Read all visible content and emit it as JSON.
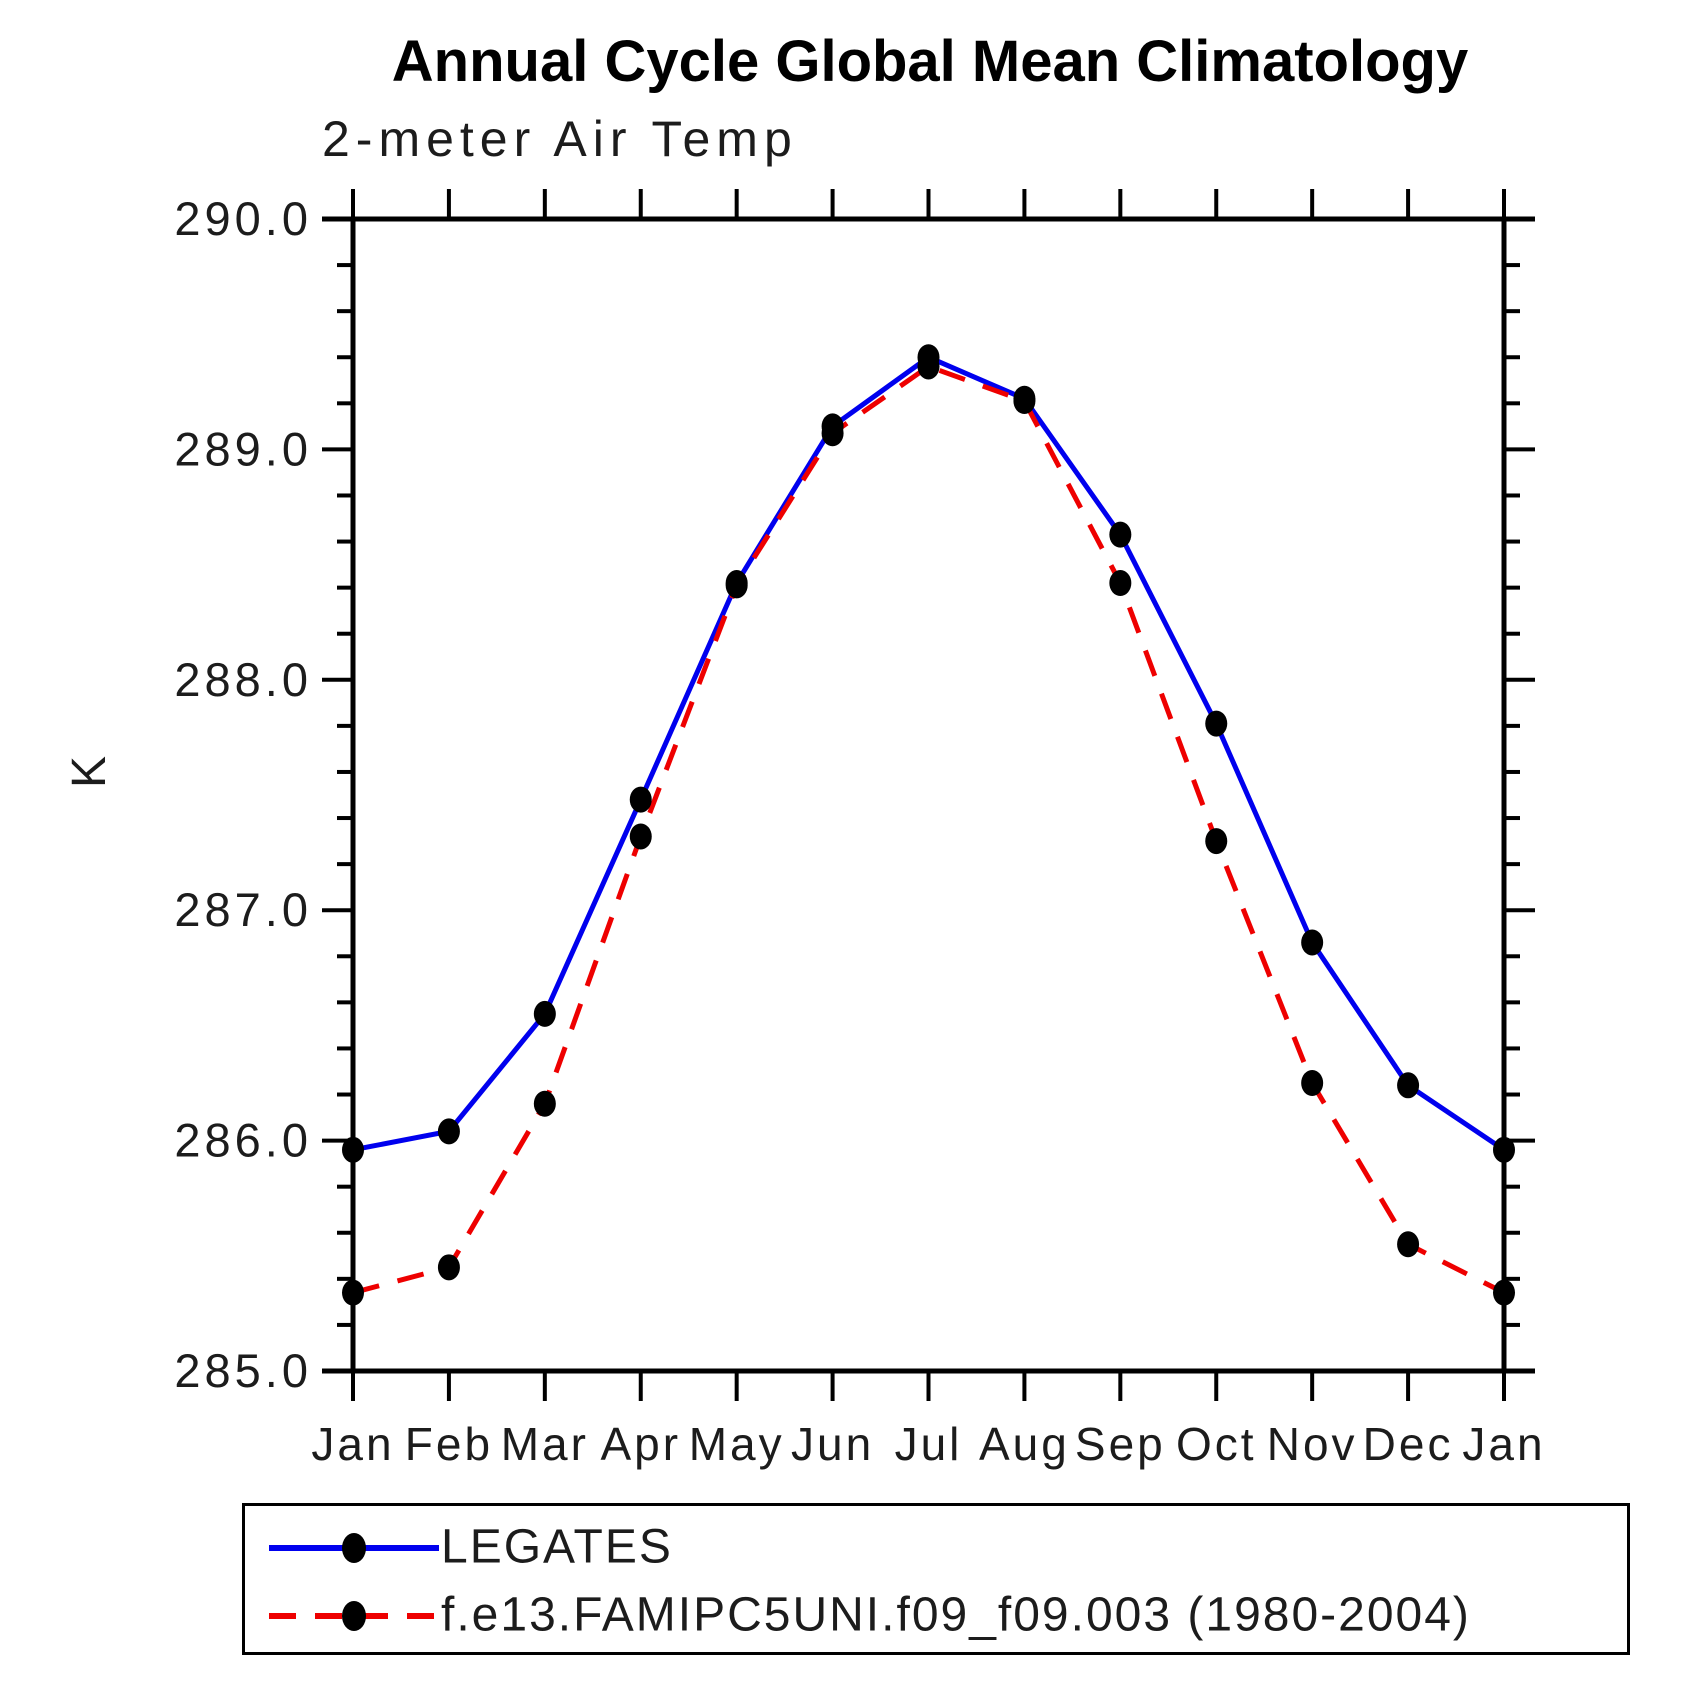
{
  "title": "Annual Cycle Global Mean Climatology",
  "subtitle": "2-meter Air Temp",
  "y_axis": {
    "label": "K",
    "tick_labels": [
      "290.0",
      "289.0",
      "288.0",
      "287.0",
      "286.0",
      "285.0"
    ],
    "minor_step": 0.2
  },
  "x_axis": {
    "tick_labels": [
      "Jan",
      "Feb",
      "Mar",
      "Apr",
      "May",
      "Jun",
      "Jul",
      "Aug",
      "Sep",
      "Oct",
      "Nov",
      "Dec",
      "Jan"
    ]
  },
  "chart_data": {
    "type": "line",
    "title": "Annual Cycle Global Mean Climatology",
    "subtitle": "2-meter Air Temp",
    "xlabel": "",
    "ylabel": "K",
    "ylim": [
      285.0,
      290.0
    ],
    "y_major_step": 1.0,
    "y_minor_step": 0.2,
    "grid": false,
    "legend_position": "bottom",
    "categories": [
      "Jan",
      "Feb",
      "Mar",
      "Apr",
      "May",
      "Jun",
      "Jul",
      "Aug",
      "Sep",
      "Oct",
      "Nov",
      "Dec",
      "Jan"
    ],
    "series": [
      {
        "name": "LEGATES",
        "color": "#0000ee",
        "line_style": "solid",
        "marker": "filled-circle",
        "marker_color": "#000000",
        "values": [
          285.96,
          286.04,
          286.55,
          287.48,
          288.42,
          289.1,
          289.4,
          289.22,
          288.63,
          287.81,
          286.86,
          286.24,
          285.96
        ]
      },
      {
        "name": "f.e13.FAMIPC5UNI.f09_f09.003 (1980-2004)",
        "color": "#ee0000",
        "line_style": "dashed",
        "marker": "filled-circle",
        "marker_color": "#000000",
        "values": [
          285.34,
          285.45,
          286.16,
          287.32,
          288.41,
          289.07,
          289.36,
          289.21,
          288.42,
          287.3,
          286.25,
          285.55,
          285.34
        ]
      }
    ]
  },
  "colors": {
    "axis": "#000000",
    "marker": "#000000",
    "background": "#ffffff"
  }
}
